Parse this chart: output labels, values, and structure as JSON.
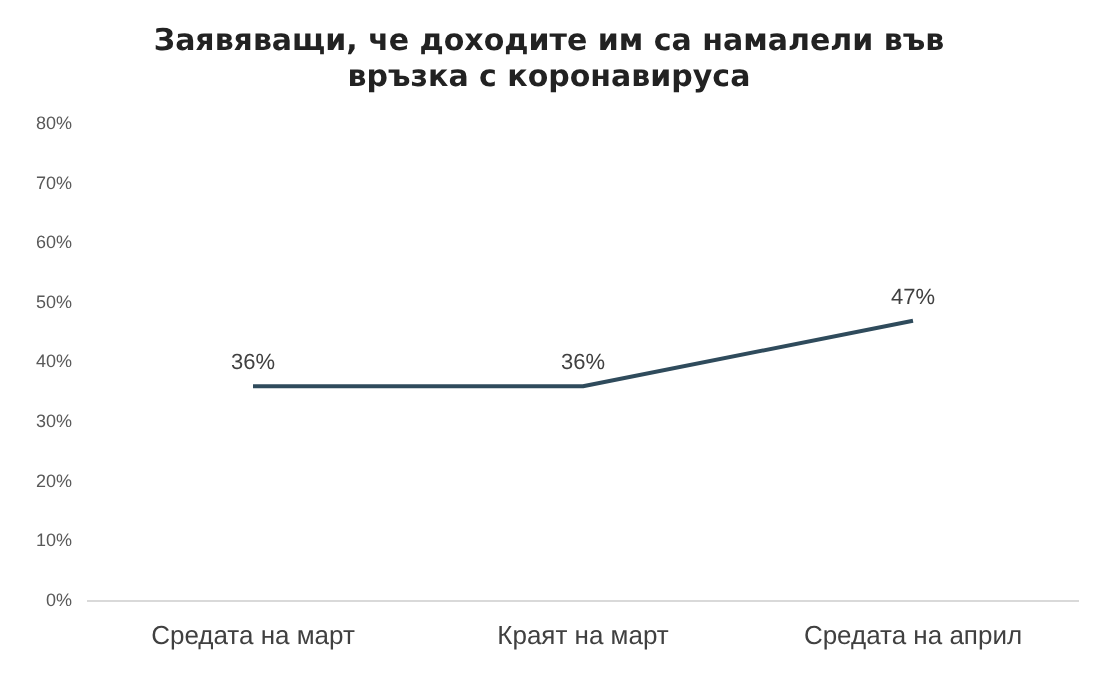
{
  "chart_data": {
    "type": "line",
    "title": "Заявяващи, че доходите им са намалели във връзка с коронавируса",
    "categories": [
      "Средата на март",
      "Краят на март",
      "Средата на април"
    ],
    "series": [
      {
        "color": "#2f4b5c",
        "values": [
          36,
          36,
          47
        ],
        "value_labels": [
          "36%",
          "36%",
          "47%"
        ]
      }
    ],
    "ylim": [
      0,
      80
    ],
    "yticks": [
      {
        "value": 0,
        "label": "0%"
      },
      {
        "value": 10,
        "label": "10%"
      },
      {
        "value": 20,
        "label": "20%"
      },
      {
        "value": 30,
        "label": "30%"
      },
      {
        "value": 40,
        "label": "40%"
      },
      {
        "value": 50,
        "label": "50%"
      },
      {
        "value": 60,
        "label": "60%"
      },
      {
        "value": 70,
        "label": "70%"
      },
      {
        "value": 80,
        "label": "80%"
      }
    ],
    "grid": false,
    "legend": false,
    "marker": "none",
    "line_style": "solid"
  }
}
